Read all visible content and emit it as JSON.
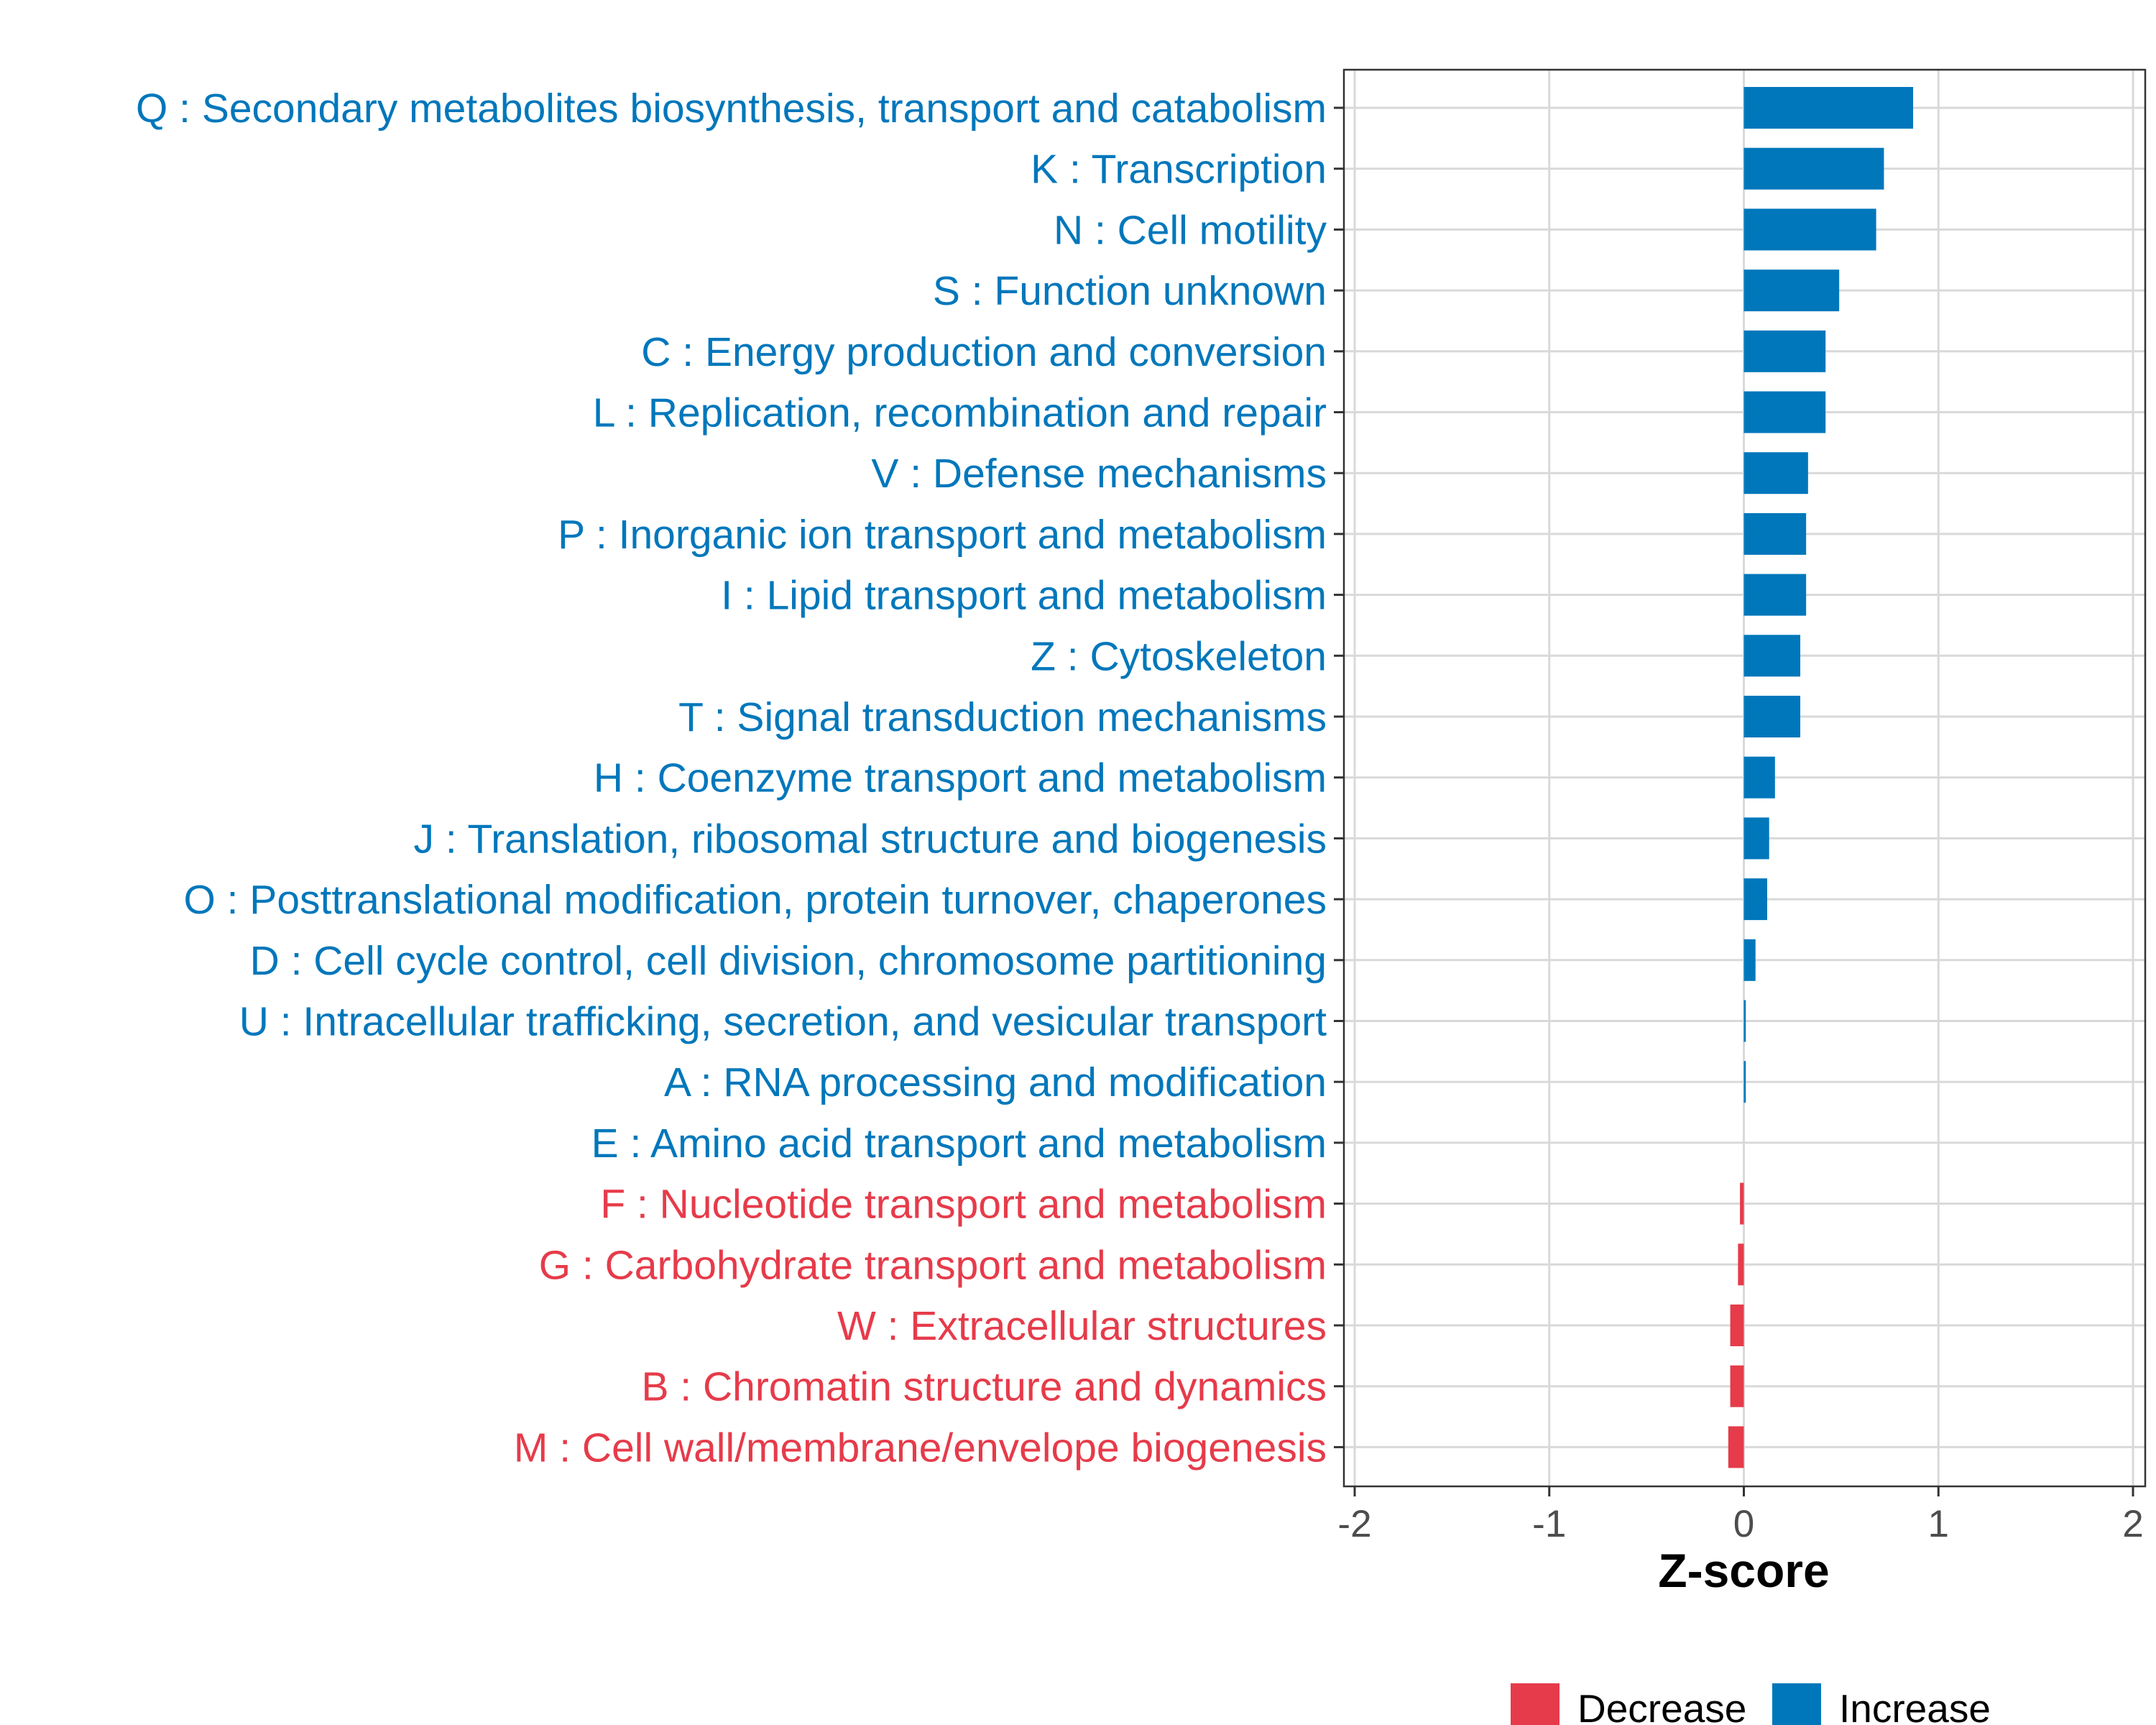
{
  "colors": {
    "increase": "#0077bb",
    "decrease": "#e63b4a",
    "grid": "#d9d9d9",
    "border": "#333333"
  },
  "chart_data": {
    "type": "bar",
    "orientation": "horizontal",
    "xlabel": "Z-score",
    "xlim": [
      -2,
      2
    ],
    "xticks": [
      -2,
      -1,
      0,
      1,
      2
    ],
    "xtick_labels": [
      "-2",
      "-1",
      "0",
      "1",
      "2"
    ],
    "grid": true,
    "legend_position": "bottom",
    "legend": [
      {
        "key": "decrease",
        "label": "Decrease"
      },
      {
        "key": "increase",
        "label": "Increase"
      }
    ],
    "categories": [
      "Q : Secondary metabolites biosynthesis, transport and catabolism",
      "K : Transcription",
      "N : Cell motility",
      "S : Function unknown",
      "C : Energy production and conversion",
      "L : Replication, recombination and repair",
      "V : Defense mechanisms",
      "P : Inorganic ion transport and metabolism",
      "I : Lipid transport and metabolism",
      "Z : Cytoskeleton",
      "T : Signal transduction mechanisms",
      "H : Coenzyme transport and metabolism",
      "J : Translation, ribosomal structure and biogenesis",
      "O : Posttranslational modification, protein turnover, chaperones",
      "D : Cell cycle control, cell division, chromosome partitioning",
      "U : Intracellular trafficking, secretion, and vesicular transport",
      "A : RNA processing and modification",
      "E : Amino acid transport and metabolism",
      "F : Nucleotide transport and metabolism",
      "G : Carbohydrate transport and metabolism",
      "W : Extracellular structures",
      "B : Chromatin structure and dynamics",
      "M : Cell wall/membrane/envelope biogenesis"
    ],
    "values": [
      0.87,
      0.72,
      0.68,
      0.49,
      0.42,
      0.42,
      0.33,
      0.32,
      0.32,
      0.29,
      0.29,
      0.16,
      0.13,
      0.12,
      0.06,
      0.01,
      0.01,
      0.0,
      -0.02,
      -0.03,
      -0.07,
      -0.07,
      -0.08
    ],
    "direction": [
      "increase",
      "increase",
      "increase",
      "increase",
      "increase",
      "increase",
      "increase",
      "increase",
      "increase",
      "increase",
      "increase",
      "increase",
      "increase",
      "increase",
      "increase",
      "increase",
      "increase",
      "increase",
      "decrease",
      "decrease",
      "decrease",
      "decrease",
      "decrease"
    ]
  }
}
